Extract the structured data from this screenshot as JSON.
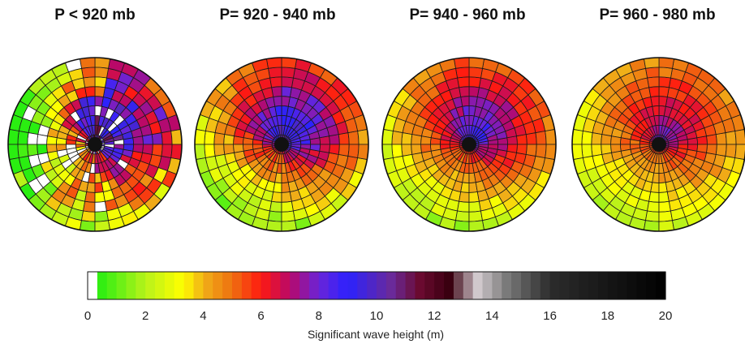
{
  "chart_data": {
    "type": "heatmap",
    "panels": [
      {
        "title": "P < 920 mb",
        "pattern": "low"
      },
      {
        "title": "P= 920 - 940 mb",
        "pattern": "mid1"
      },
      {
        "title": "P= 940 - 960 mb",
        "pattern": "mid2"
      },
      {
        "title": "P= 960 - 980 mb",
        "pattern": "high"
      }
    ],
    "grid": {
      "rings": 9,
      "sectors": 36
    },
    "colorbar": {
      "label": "Significant wave height (m)",
      "range": [
        0,
        20
      ],
      "ticks": [
        "0",
        "2",
        "4",
        "6",
        "8",
        "10",
        "12",
        "14",
        "16",
        "18",
        "20"
      ],
      "stops": [
        {
          "v": 0,
          "c": "#ffffff"
        },
        {
          "v": 0.3,
          "c": "#ffffff"
        },
        {
          "v": 0.31,
          "c": "#22ee11"
        },
        {
          "v": 2,
          "c": "#b8f21a"
        },
        {
          "v": 3.3,
          "c": "#ffff00"
        },
        {
          "v": 4,
          "c": "#f0b018"
        },
        {
          "v": 5,
          "c": "#ee7010"
        },
        {
          "v": 6,
          "c": "#ff1a10"
        },
        {
          "v": 7,
          "c": "#b8086a"
        },
        {
          "v": 8,
          "c": "#6a24d8"
        },
        {
          "v": 9,
          "c": "#2b22ff"
        },
        {
          "v": 10.5,
          "c": "#6a2a9a"
        },
        {
          "v": 11.5,
          "c": "#6a0a30"
        },
        {
          "v": 12.5,
          "c": "#3a0010"
        },
        {
          "v": 13.5,
          "c": "#d0c8cc"
        },
        {
          "v": 14.5,
          "c": "#7a7a7a"
        },
        {
          "v": 16,
          "c": "#2c2c2c"
        },
        {
          "v": 20,
          "c": "#000000"
        }
      ]
    }
  }
}
